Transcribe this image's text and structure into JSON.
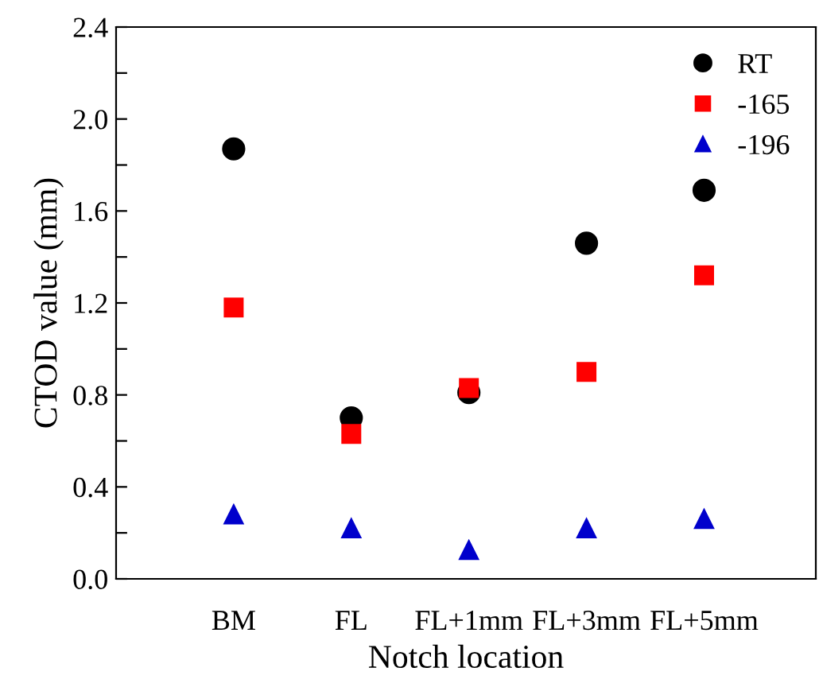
{
  "chart_data": {
    "type": "scatter",
    "xlabel": "Notch location",
    "ylabel": "CTOD value (mm)",
    "categories": [
      "BM",
      "FL",
      "FL+1mm",
      "FL+3mm",
      "FL+5mm"
    ],
    "series": [
      {
        "name": "RT",
        "color": "#000000",
        "marker": "circle",
        "values": [
          1.87,
          0.7,
          0.81,
          1.46,
          1.69
        ]
      },
      {
        "name": "-165",
        "color": "#ff0000",
        "marker": "square",
        "values": [
          1.18,
          0.63,
          0.83,
          0.9,
          1.32
        ]
      },
      {
        "name": "-196",
        "color": "#0000cc",
        "marker": "triangle",
        "values": [
          0.28,
          0.22,
          0.125,
          0.22,
          0.26
        ]
      }
    ],
    "ylim": [
      0,
      2.4
    ],
    "yticks": [
      {
        "value": 0,
        "label": "0.0"
      },
      {
        "value": 0.2,
        "label": null
      },
      0.4,
      {
        "value": 0.6,
        "label": null
      },
      0.8,
      {
        "value": 1.0,
        "label": null
      },
      1.2,
      {
        "value": 1.4,
        "label": null
      },
      1.6,
      {
        "value": 1.8,
        "label": null
      },
      {
        "value": 2,
        "label": "2.0"
      },
      {
        "value": 2.2,
        "label": null
      },
      2.4
    ],
    "grid": false,
    "legend": "top right"
  }
}
